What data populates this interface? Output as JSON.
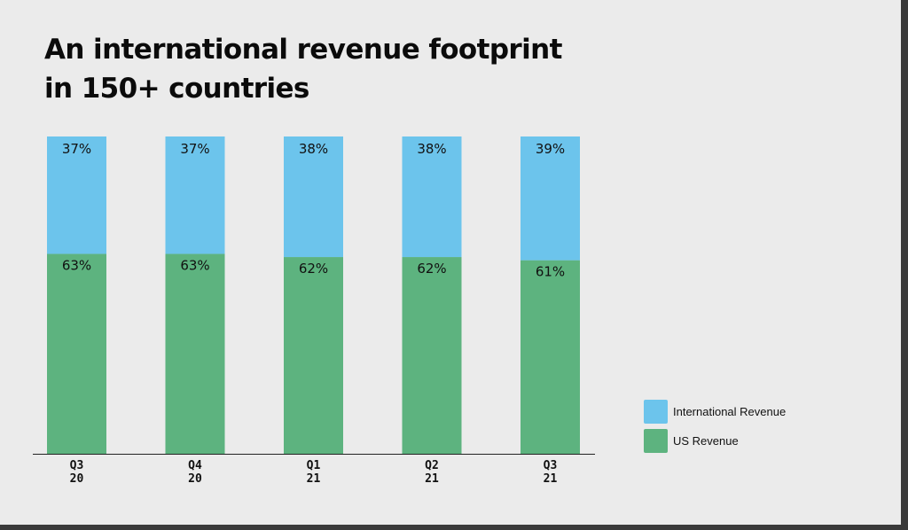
{
  "title_line1": "An international revenue footprint",
  "title_line2": "in 150+ countries",
  "colors": {
    "international": "#6cc4ec",
    "us": "#5db37f",
    "axis": "#222222"
  },
  "legend": [
    {
      "label": "International Revenue",
      "color": "#6cc4ec"
    },
    {
      "label": "US Revenue",
      "color": "#5db37f"
    }
  ],
  "chart_data": {
    "type": "bar",
    "stacked": true,
    "percent": true,
    "categories": [
      [
        "Q3",
        "20"
      ],
      [
        "Q4",
        "20"
      ],
      [
        "Q1",
        "21"
      ],
      [
        "Q2",
        "21"
      ],
      [
        "Q3",
        "21"
      ]
    ],
    "series": [
      {
        "name": "US Revenue",
        "values": [
          63,
          63,
          62,
          62,
          61
        ],
        "labels": [
          "63%",
          "63%",
          "62%",
          "62%",
          "61%"
        ]
      },
      {
        "name": "International Revenue",
        "values": [
          37,
          37,
          38,
          38,
          39
        ],
        "labels": [
          "37%",
          "37%",
          "38%",
          "38%",
          "39%"
        ]
      }
    ],
    "ylim": [
      0,
      100
    ],
    "grid": false,
    "legend_position": "right"
  }
}
